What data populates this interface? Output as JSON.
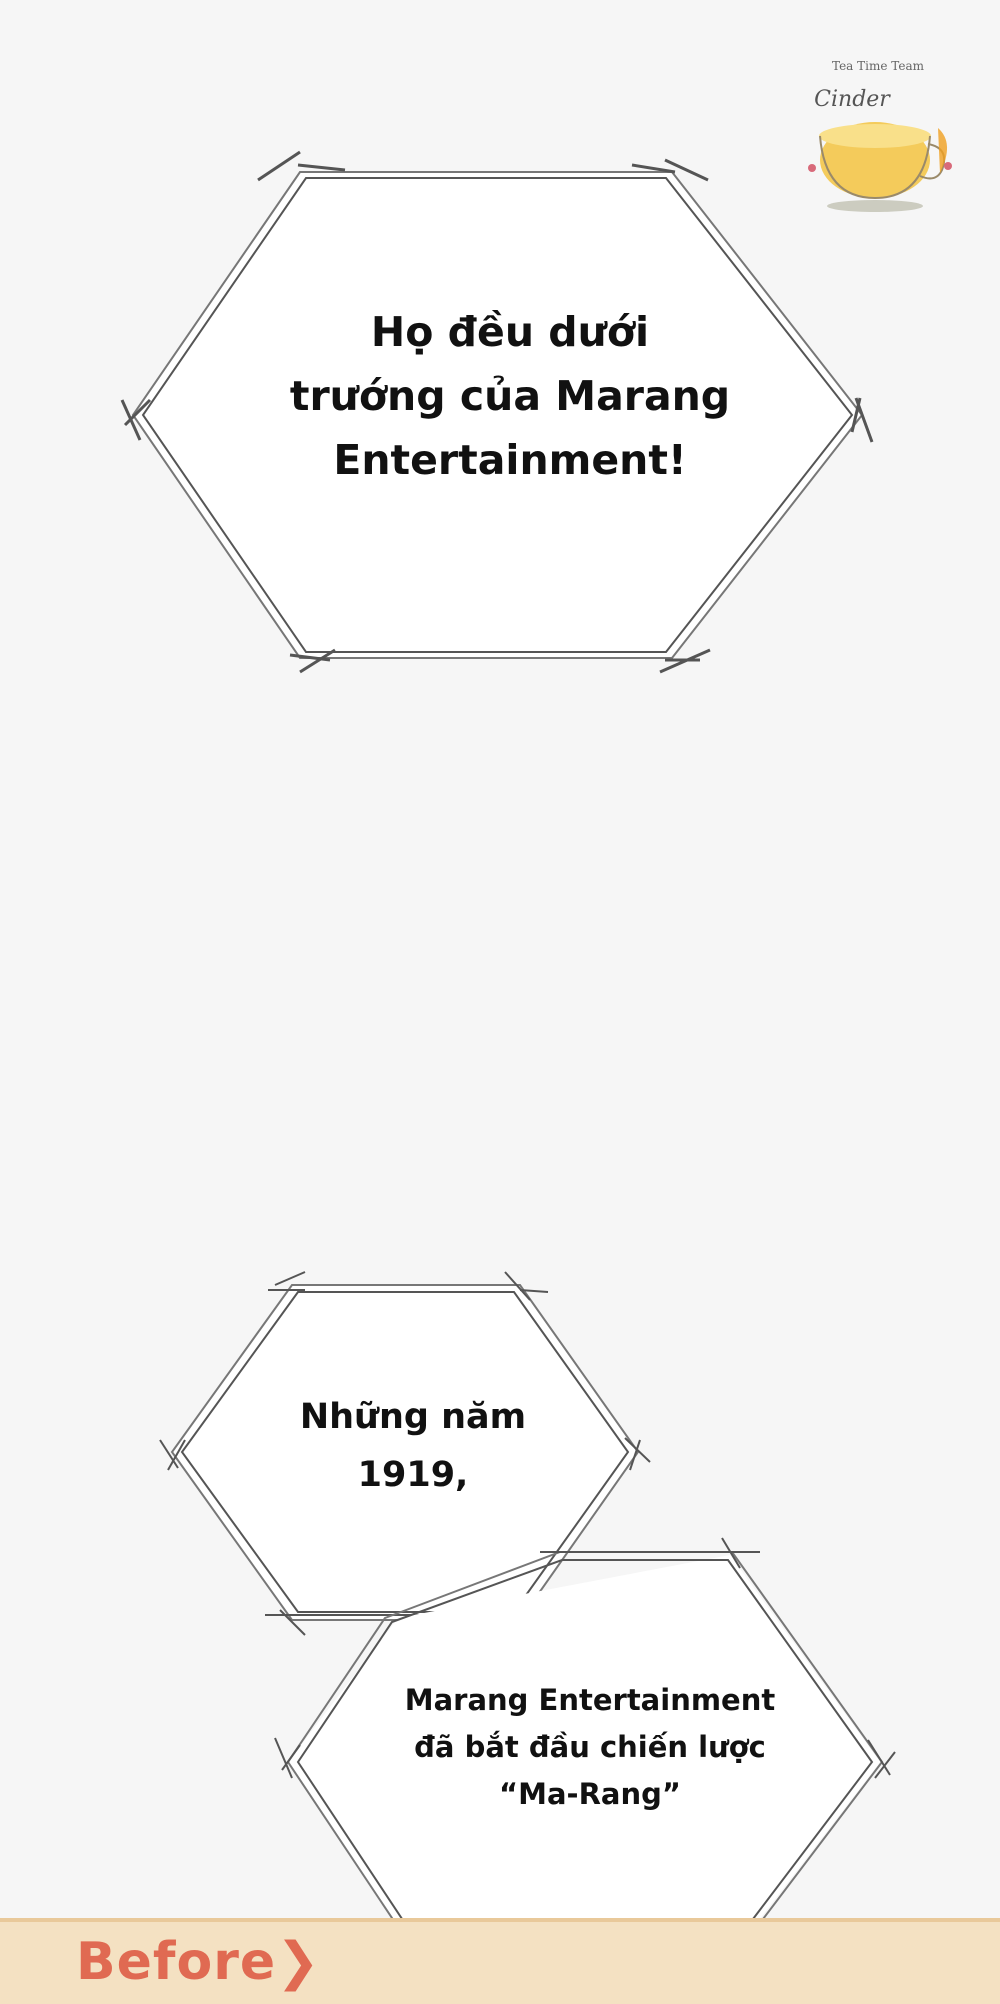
{
  "watermark": {
    "line1": "Tea Time Team",
    "line2": "Cinder",
    "icon": "teacup-icon"
  },
  "panels": [
    {
      "text": "Họ đều dưới\ntrướng của Marang\nEntertainment!"
    },
    {
      "text": "Những năm\n1919,"
    },
    {
      "text": "Marang Entertainment\nđã bắt đầu chiến lược\n“Ma-Rang”"
    }
  ],
  "bottom_label": "Before❯",
  "colors": {
    "background": "#f6f6f6",
    "frame_stroke": "#555555",
    "strip": "#f4e1c2",
    "label": "#e06a52"
  }
}
